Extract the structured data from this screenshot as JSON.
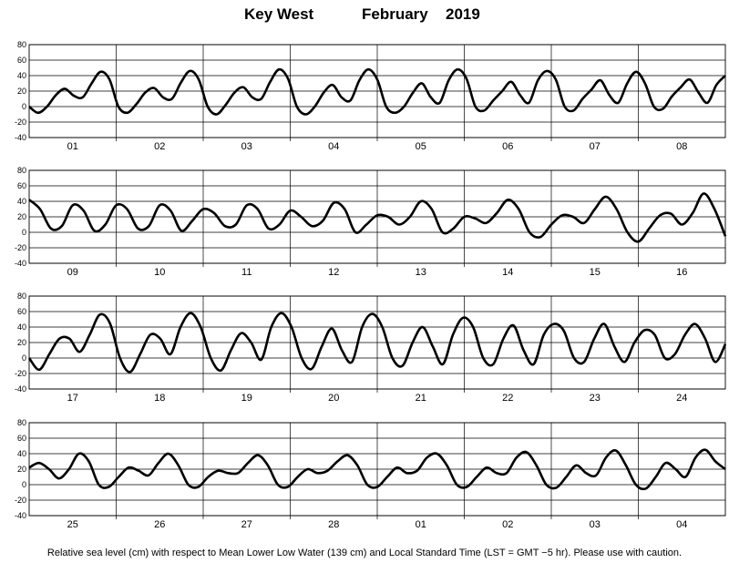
{
  "title": {
    "station": "Key West",
    "month": "February",
    "year": "2019"
  },
  "caption": "Relative sea level (cm) with respect to Mean Lower Low Water (139 cm) and Local Standard Time (LST = GMT −5 hr). Please use with caution.",
  "chart_data": [
    {
      "type": "line",
      "ylim": [
        -40,
        80
      ],
      "yticks": [
        -40,
        -20,
        0,
        20,
        40,
        60,
        80
      ],
      "grid": "horizontal lines at each y tick; vertical lines at day boundaries",
      "days": [
        "01",
        "02",
        "03",
        "04",
        "05",
        "06",
        "07",
        "08"
      ],
      "series": [
        {
          "values": [
            0,
            -8,
            0,
            15,
            23,
            14,
            12,
            30,
            45,
            35,
            0,
            -8,
            3,
            18,
            24,
            12,
            10,
            31,
            46,
            35,
            0,
            -10,
            2,
            18,
            25,
            12,
            10,
            32,
            48,
            36,
            0,
            -10,
            0,
            18,
            28,
            12,
            8,
            34,
            48,
            35,
            0,
            -8,
            0,
            18,
            30,
            12,
            5,
            34,
            48,
            36,
            0,
            -5,
            8,
            20,
            32,
            15,
            5,
            34,
            46,
            35,
            0,
            -5,
            10,
            22,
            34,
            15,
            5,
            30,
            45,
            30,
            0,
            -3,
            13,
            25,
            35,
            18,
            5,
            28,
            40
          ]
        }
      ]
    },
    {
      "type": "line",
      "ylim": [
        -40,
        80
      ],
      "yticks": [
        -40,
        -20,
        0,
        20,
        40,
        60,
        80
      ],
      "grid": "horizontal lines at each y tick; vertical lines at day boundaries",
      "days": [
        "09",
        "10",
        "11",
        "12",
        "13",
        "14",
        "15",
        "16"
      ],
      "series": [
        {
          "values": [
            42,
            30,
            5,
            8,
            35,
            28,
            2,
            10,
            35,
            30,
            5,
            8,
            35,
            28,
            2,
            15,
            30,
            25,
            8,
            10,
            35,
            30,
            5,
            10,
            28,
            20,
            8,
            15,
            38,
            30,
            0,
            10,
            22,
            20,
            10,
            20,
            40,
            30,
            0,
            5,
            20,
            18,
            12,
            25,
            42,
            30,
            0,
            -6,
            10,
            22,
            20,
            12,
            30,
            46,
            30,
            0,
            -12,
            5,
            22,
            24,
            10,
            25,
            50,
            30,
            -5
          ]
        }
      ]
    },
    {
      "type": "line",
      "ylim": [
        -40,
        80
      ],
      "yticks": [
        -40,
        -20,
        0,
        20,
        40,
        60,
        80
      ],
      "grid": "horizontal lines at each y tick; vertical lines at day boundaries",
      "days": [
        "17",
        "18",
        "19",
        "20",
        "21",
        "22",
        "23",
        "24"
      ],
      "series": [
        {
          "values": [
            0,
            -15,
            5,
            25,
            25,
            8,
            30,
            56,
            45,
            0,
            -18,
            5,
            30,
            25,
            5,
            40,
            58,
            40,
            0,
            -16,
            10,
            32,
            20,
            -2,
            40,
            58,
            40,
            0,
            -14,
            15,
            38,
            10,
            -5,
            40,
            57,
            40,
            0,
            -10,
            20,
            40,
            15,
            -8,
            30,
            52,
            40,
            0,
            -8,
            25,
            42,
            10,
            -8,
            30,
            44,
            35,
            0,
            -5,
            25,
            44,
            15,
            -5,
            20,
            36,
            30,
            0,
            5,
            30,
            44,
            25,
            -5,
            18
          ]
        }
      ]
    },
    {
      "type": "line",
      "ylim": [
        -40,
        80
      ],
      "yticks": [
        -40,
        -20,
        0,
        20,
        40,
        60,
        80
      ],
      "grid": "horizontal lines at each y tick; vertical lines at day boundaries",
      "days": [
        "25",
        "26",
        "27",
        "28",
        "01",
        "02",
        "03",
        "04"
      ],
      "series": [
        {
          "values": [
            22,
            28,
            20,
            8,
            20,
            40,
            30,
            0,
            -3,
            10,
            22,
            18,
            12,
            28,
            40,
            25,
            0,
            -3,
            10,
            18,
            15,
            15,
            28,
            38,
            25,
            0,
            -3,
            10,
            20,
            15,
            18,
            30,
            38,
            25,
            0,
            -3,
            10,
            22,
            15,
            18,
            35,
            40,
            25,
            0,
            -3,
            10,
            22,
            15,
            15,
            35,
            42,
            25,
            0,
            -4,
            10,
            25,
            15,
            12,
            35,
            44,
            25,
            0,
            -5,
            10,
            28,
            20,
            10,
            35,
            45,
            30,
            20
          ]
        }
      ]
    }
  ]
}
